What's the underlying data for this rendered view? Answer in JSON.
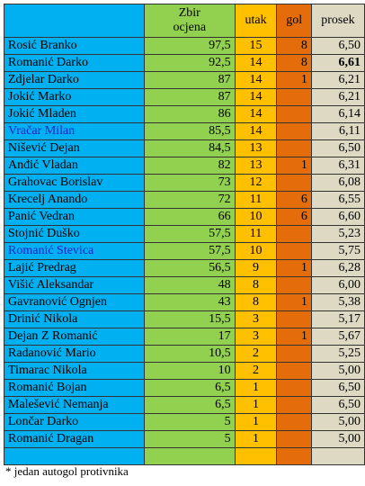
{
  "table": {
    "headers": {
      "name": "",
      "zbir_line1": "Zbir",
      "zbir_line2": "ocjena",
      "utak": "utak",
      "gol": "gol",
      "prosek": "prosek"
    },
    "rows": [
      {
        "name": "Rosić Branko",
        "zbir": "97,5",
        "utak": "15",
        "gol": "8",
        "prosek": "6,50"
      },
      {
        "name": "Romanić Darko",
        "zbir": "92,5",
        "utak": "14",
        "gol": "8",
        "prosek": "6,61",
        "prosek_bold": true
      },
      {
        "name": "Zdjelar Darko",
        "zbir": "87",
        "utak": "14",
        "gol": "1",
        "prosek": "6,21"
      },
      {
        "name": "Jokić Marko",
        "zbir": "87",
        "utak": "14",
        "gol": "",
        "prosek": "6,21"
      },
      {
        "name": "Jokić Mladen",
        "zbir": "86",
        "utak": "14",
        "gol": "",
        "prosek": "6,14"
      },
      {
        "name": "Vračar Milan",
        "zbir": "85,5",
        "utak": "14",
        "gol": "",
        "prosek": "6,11",
        "name_blue": true
      },
      {
        "name": "Nišević Dejan",
        "zbir": "84,5",
        "utak": "13",
        "gol": "",
        "prosek": "6,50"
      },
      {
        "name": "Anđić Vladan",
        "zbir": "82",
        "utak": "13",
        "gol": "1",
        "prosek": "6,31"
      },
      {
        "name": "Grahovac Borislav",
        "zbir": "73",
        "utak": "12",
        "gol": "",
        "prosek": "6,08"
      },
      {
        "name": "Krecelj Anando",
        "zbir": "72",
        "utak": "11",
        "gol": "6",
        "prosek": "6,55"
      },
      {
        "name": "Panić Vedran",
        "zbir": "66",
        "utak": "10",
        "gol": "6",
        "prosek": "6,60"
      },
      {
        "name": "Stojnić Duško",
        "zbir": "57,5",
        "utak": "11",
        "gol": "",
        "prosek": "5,23"
      },
      {
        "name": "Romanić Stevica",
        "zbir": "57,5",
        "utak": "10",
        "gol": "",
        "prosek": "5,75",
        "name_blue": true
      },
      {
        "name": "Lajić Predrag",
        "zbir": "56,5",
        "utak": "9",
        "gol": "1",
        "prosek": "6,28"
      },
      {
        "name": "Višić Aleksandar",
        "zbir": "48",
        "utak": "8",
        "gol": "",
        "prosek": "6,00"
      },
      {
        "name": "Gavranović Ognjen",
        "zbir": "43",
        "utak": "8",
        "gol": "1",
        "prosek": "5,38"
      },
      {
        "name": "Drinić Nikola",
        "zbir": "15,5",
        "utak": "3",
        "gol": "",
        "prosek": "5,17"
      },
      {
        "name": "Dejan Z Romanić",
        "zbir": "17",
        "utak": "3",
        "gol": "1",
        "prosek": "5,67"
      },
      {
        "name": "Radanović Mario",
        "zbir": "10,5",
        "utak": "2",
        "gol": "",
        "prosek": "5,25"
      },
      {
        "name": "Timarac Nikola",
        "zbir": "10",
        "utak": "2",
        "gol": "",
        "prosek": "5,00"
      },
      {
        "name": "Romanić Bojan",
        "zbir": "6,5",
        "utak": "1",
        "gol": "",
        "prosek": "6,50"
      },
      {
        "name": "Malešević Nemanja",
        "zbir": "6,5",
        "utak": "1",
        "gol": "",
        "prosek": "6,50"
      },
      {
        "name": "Lončar Darko",
        "zbir": "5",
        "utak": "1",
        "gol": "",
        "prosek": "5,00"
      },
      {
        "name": "Romanić Dragan",
        "zbir": "5",
        "utak": "1",
        "gol": "",
        "prosek": "5,00"
      }
    ]
  },
  "footnote": "* jedan autogol protivnika",
  "colors": {
    "name_column": "#00b0f0",
    "zbir_column": "#92d050",
    "utak_column": "#ffc000",
    "gol_column": "#e46c0a",
    "prosek_column": "#ddd9c3",
    "highlight_name_text": "#2222cc"
  }
}
